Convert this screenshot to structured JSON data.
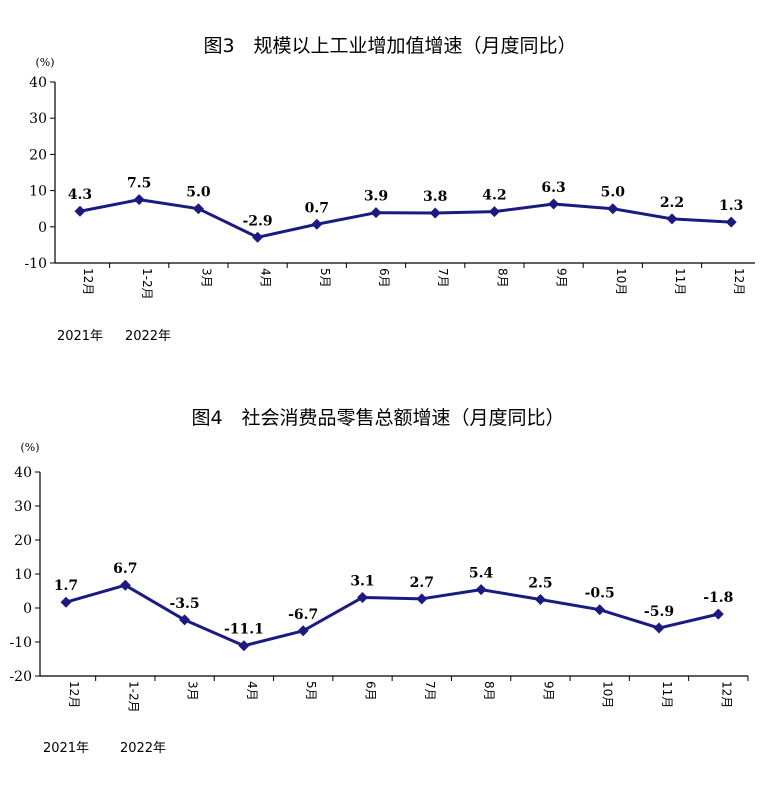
{
  "chart_data": [
    {
      "type": "line",
      "title": "图3　规模以上工业增加值增速（月度同比）",
      "unit_label": "(%)",
      "categories": [
        "12月",
        "1-2月",
        "3月",
        "4月",
        "5月",
        "6月",
        "7月",
        "8月",
        "9月",
        "10月",
        "11月",
        "12月"
      ],
      "year_labels": [
        "2021年",
        "2022年"
      ],
      "series": [
        {
          "values": [
            4.3,
            7.5,
            5.0,
            -2.9,
            0.7,
            3.9,
            3.8,
            4.2,
            6.3,
            5.0,
            2.2,
            1.3
          ],
          "labels": [
            "4.3",
            "7.5",
            "5.0",
            "-2.9",
            "0.7",
            "3.9",
            "3.8",
            "4.2",
            "6.3",
            "5.0",
            "2.2",
            "1.3"
          ]
        }
      ],
      "ylim": [
        -10,
        40
      ],
      "yticks": [
        -10,
        0,
        10,
        20,
        30,
        40
      ],
      "line_color": "#1a1a80",
      "marker": "diamond",
      "grid": false
    },
    {
      "type": "line",
      "title": "图4　社会消费品零售总额增速（月度同比）",
      "unit_label": "(%)",
      "categories": [
        "12月",
        "1-2月",
        "3月",
        "4月",
        "5月",
        "6月",
        "7月",
        "8月",
        "9月",
        "10月",
        "11月",
        "12月"
      ],
      "year_labels": [
        "2021年",
        "2022年"
      ],
      "series": [
        {
          "values": [
            1.7,
            6.7,
            -3.5,
            -11.1,
            -6.7,
            3.1,
            2.7,
            5.4,
            2.5,
            -0.5,
            -5.9,
            -1.8
          ],
          "labels": [
            "1.7",
            "6.7",
            "-3.5",
            "-11.1",
            "-6.7",
            "3.1",
            "2.7",
            "5.4",
            "2.5",
            "-0.5",
            "-5.9",
            "-1.8"
          ]
        }
      ],
      "ylim": [
        -20,
        40
      ],
      "yticks": [
        -20,
        -10,
        0,
        10,
        20,
        30,
        40
      ],
      "line_color": "#1a1a80",
      "marker": "diamond",
      "grid": false
    }
  ]
}
